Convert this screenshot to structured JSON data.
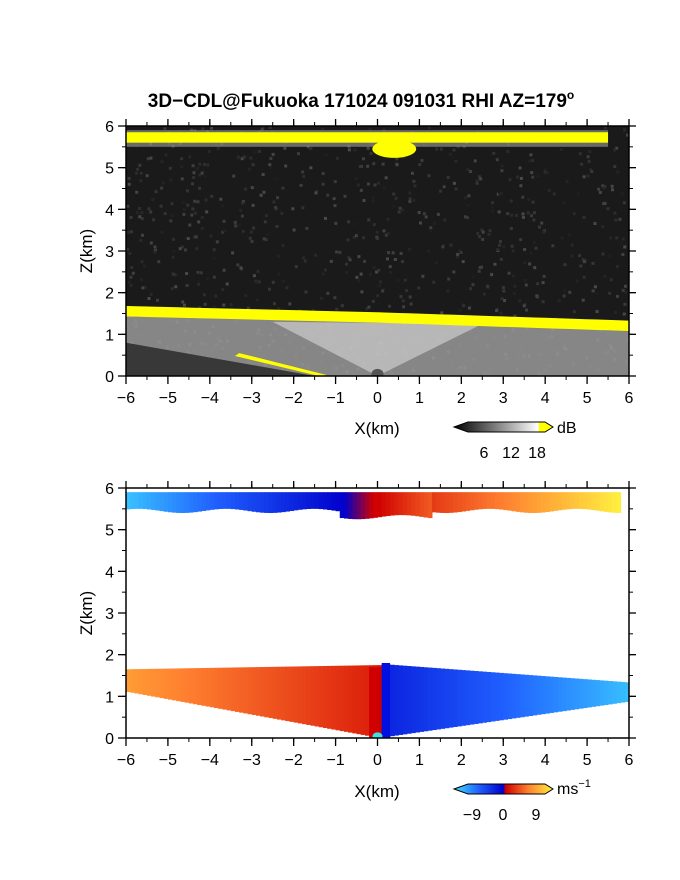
{
  "chart_data": [
    {
      "type": "heatmap",
      "title": "3D−CDL@Fukuoka 171024 091031 RHI AZ=179",
      "title_superscript": "o",
      "xlabel": "X(km)",
      "ylabel": "Z(km)",
      "xlim": [
        -6,
        6
      ],
      "ylim": [
        0,
        6
      ],
      "x_ticks": [
        "−6",
        "−5",
        "−4",
        "−3",
        "−2",
        "−1",
        "0",
        "1",
        "2",
        "3",
        "4",
        "5",
        "6"
      ],
      "y_ticks": [
        "0",
        "1",
        "2",
        "3",
        "4",
        "5",
        "6"
      ],
      "quantity": "SNR",
      "colorbar": {
        "unit": "dB",
        "ticks": [
          "6",
          "12",
          "18"
        ],
        "colormap": "grayscale, yellow above 18"
      },
      "features": [
        {
          "name": "upper cloud layer",
          "z_base_km": 5.5,
          "z_top_km": 5.9,
          "x_range_km": [
            -6,
            5.5
          ]
        },
        {
          "name": "boundary layer top",
          "z_km": [
            1.65,
            1.5,
            1.3
          ],
          "x_km": [
            -6,
            0,
            6
          ]
        }
      ]
    },
    {
      "type": "heatmap",
      "xlabel": "X(km)",
      "ylabel": "Z(km)",
      "xlim": [
        -6,
        6
      ],
      "ylim": [
        0,
        6
      ],
      "x_ticks": [
        "−6",
        "−5",
        "−4",
        "−3",
        "−2",
        "−1",
        "0",
        "1",
        "2",
        "3",
        "4",
        "5",
        "6"
      ],
      "y_ticks": [
        "0",
        "1",
        "2",
        "3",
        "4",
        "5",
        "6"
      ],
      "quantity": "Doppler velocity",
      "colorbar": {
        "unit": "ms",
        "unit_superscript": "−1",
        "ticks": [
          "−9",
          "0",
          "9"
        ],
        "colormap": "cyan-blue-red-orange-yellow"
      },
      "features": [
        {
          "name": "upper layer velocity",
          "velocity_ms": [
            -8,
            9
          ],
          "x_range_km": [
            -6,
            5.7
          ],
          "z_range_km": [
            5.3,
            5.9
          ]
        },
        {
          "name": "lower layer velocity",
          "velocity_ms": [
            6,
            -8
          ],
          "x_range_km": [
            -6,
            6
          ],
          "z_range_km": [
            0,
            1.8
          ]
        }
      ]
    }
  ]
}
